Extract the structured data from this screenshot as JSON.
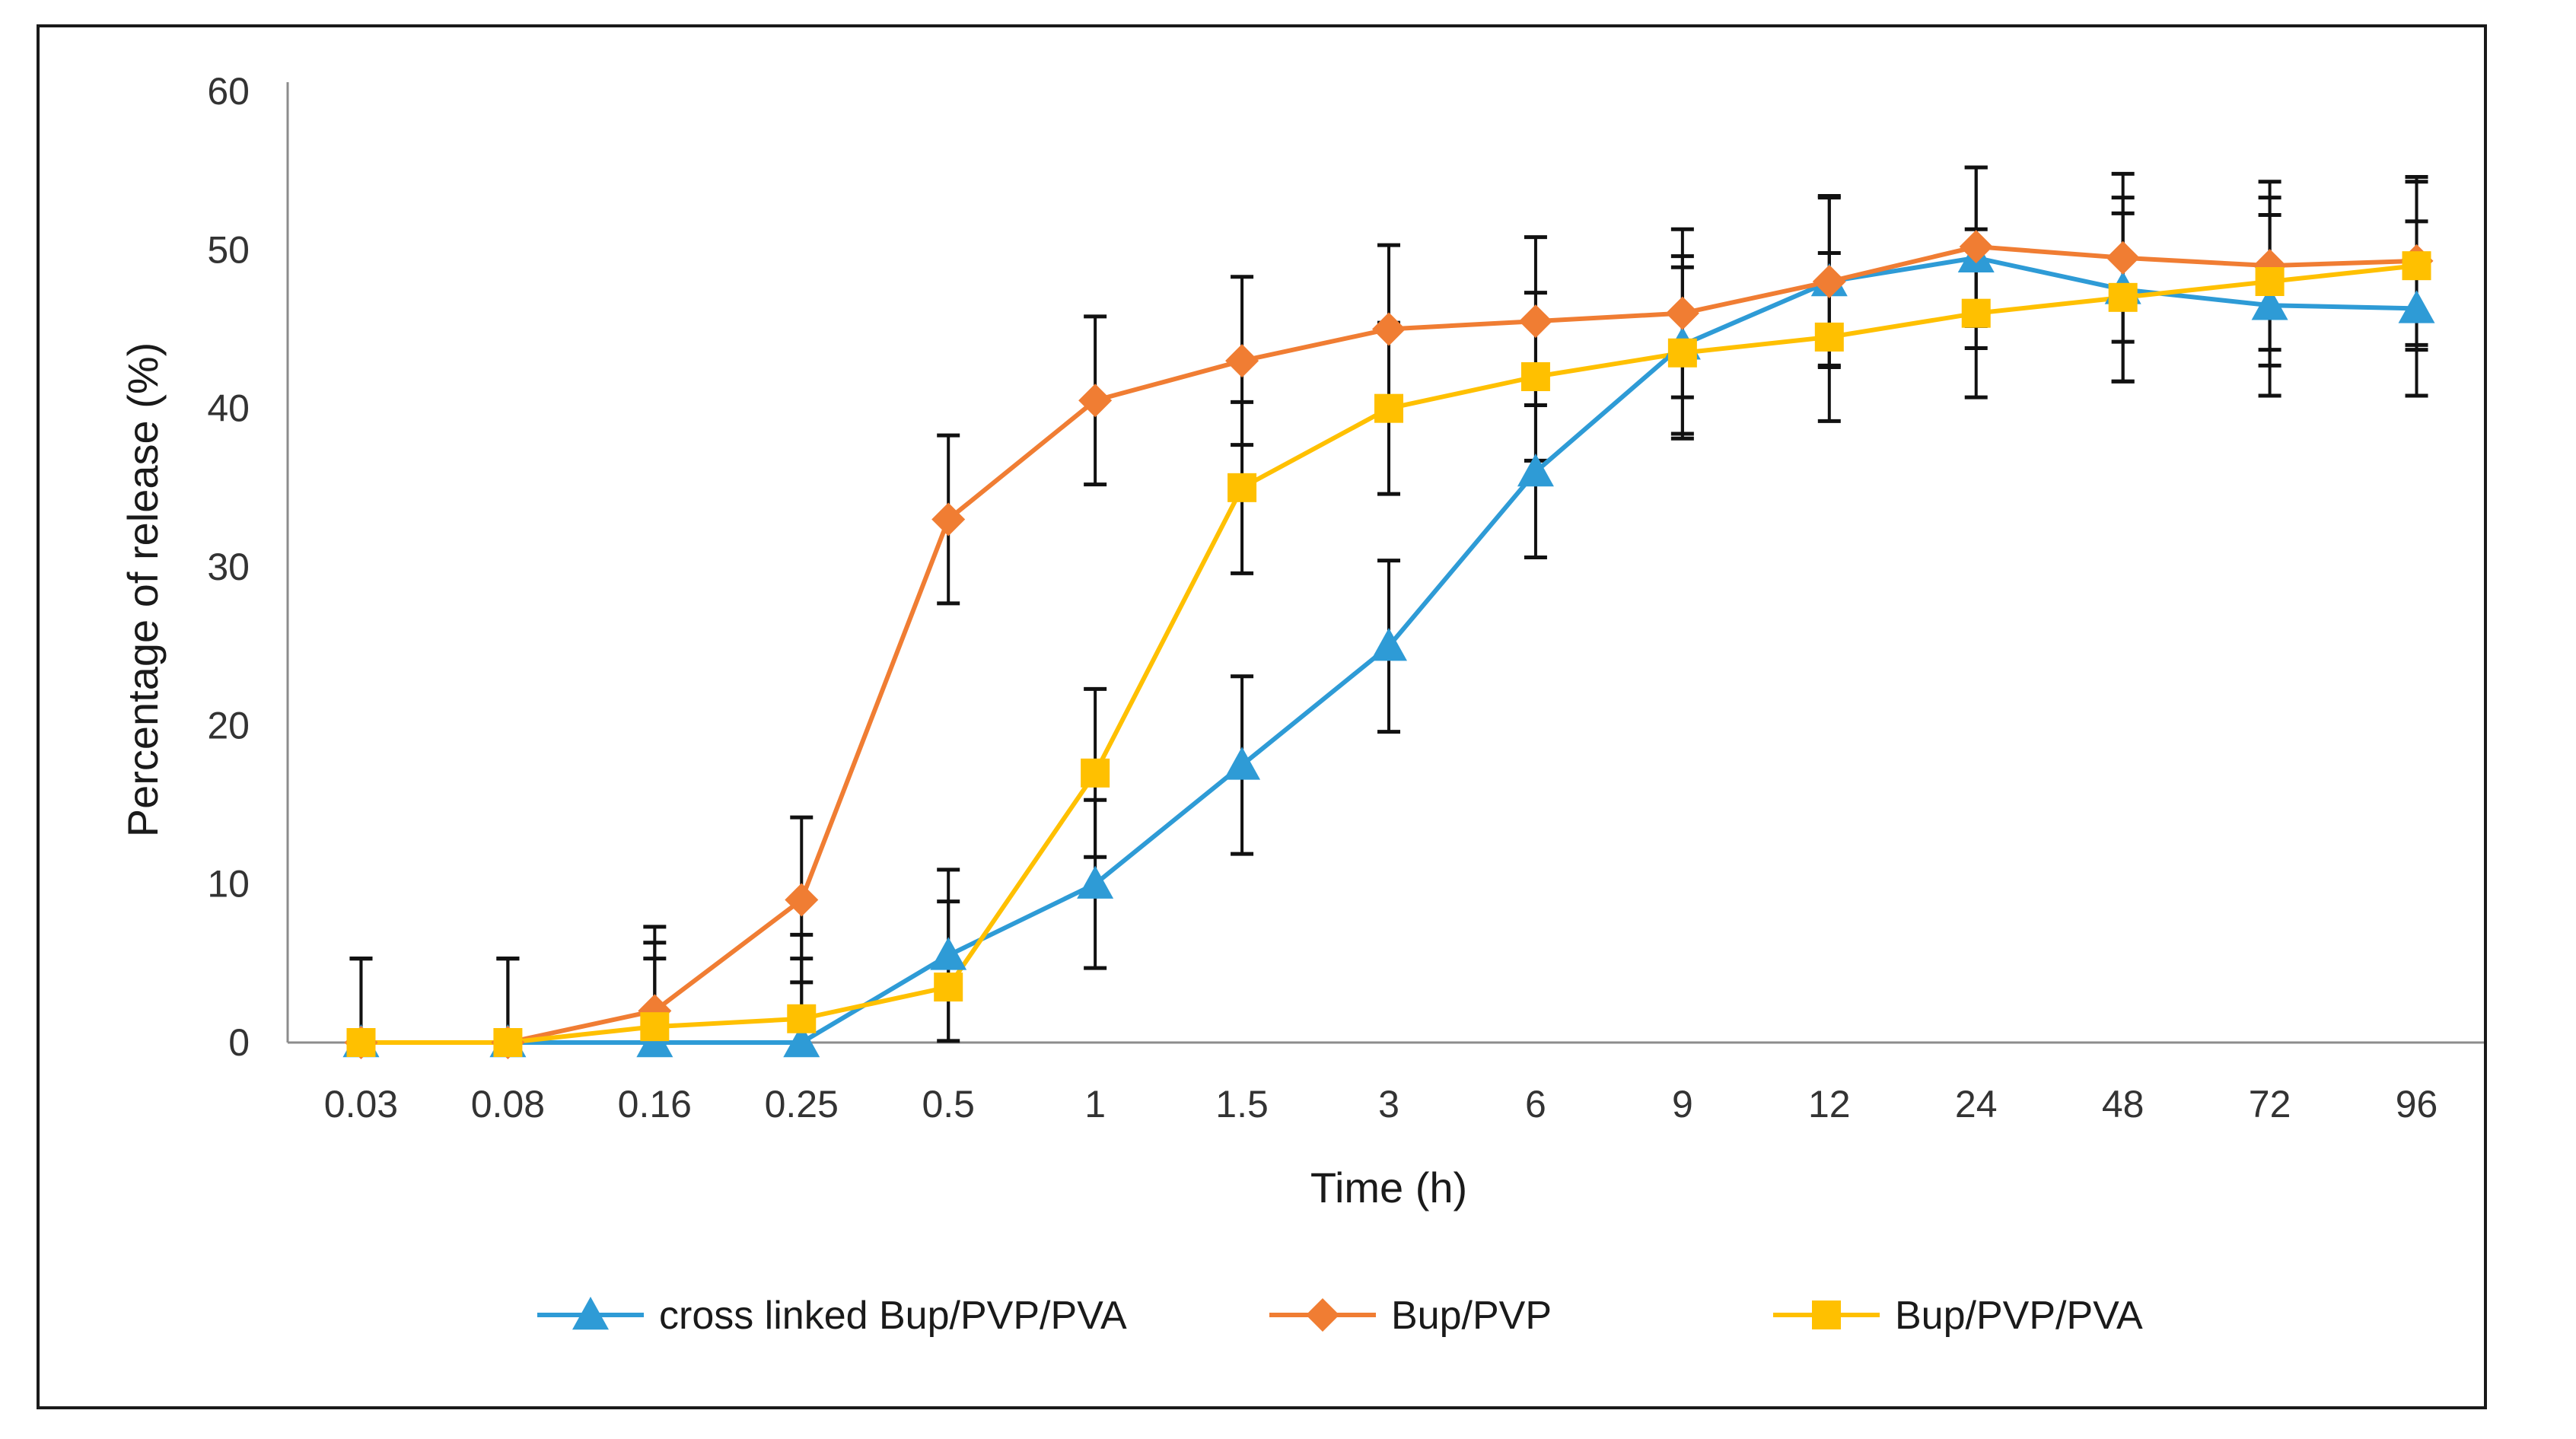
{
  "chart_data": {
    "type": "line",
    "title": "",
    "xlabel": "Time (h)",
    "ylabel": "Percentage of release (%)",
    "categories": [
      "0.03",
      "0.08",
      "0.16",
      "0.25",
      "0.5",
      "1",
      "1.5",
      "3",
      "6",
      "9",
      "12",
      "24",
      "48",
      "72",
      "96"
    ],
    "ylim": [
      0,
      60
    ],
    "yticks": [
      "0",
      "10",
      "20",
      "30",
      "40",
      "50",
      "60"
    ],
    "grid": false,
    "legend_position": "bottom",
    "series": [
      {
        "name": "cross linked Bup/PVP/PVA",
        "color": "#2E9BD6",
        "marker": "triangle",
        "values": [
          0,
          0,
          0,
          0,
          5.5,
          10,
          17.5,
          25,
          36,
          44,
          48,
          49.5,
          47.5,
          46.5,
          46.3
        ],
        "errors": [
          5.3,
          5.3,
          5.3,
          5.3,
          5.4,
          5.3,
          5.6,
          5.4,
          5.4,
          5.6,
          5.4,
          5.7,
          5.8,
          5.7,
          5.5
        ]
      },
      {
        "name": "Bup/PVP",
        "color": "#F07D33",
        "marker": "diamond",
        "values": [
          0,
          0,
          2,
          9,
          33,
          40.5,
          43,
          45,
          45.5,
          46,
          48,
          50.2,
          49.5,
          49,
          49.3
        ],
        "errors": [
          5.3,
          5.3,
          5.3,
          5.2,
          5.3,
          5.3,
          5.3,
          5.3,
          5.3,
          5.3,
          5.3,
          5.0,
          5.3,
          5.3,
          5.3
        ]
      },
      {
        "name": "Bup/PVP/PVA",
        "color": "#FFC000",
        "marker": "square",
        "values": [
          0,
          0,
          1,
          1.5,
          3.5,
          17,
          35,
          40,
          42,
          43.5,
          44.5,
          46,
          47,
          48,
          49
        ],
        "errors": [
          5.3,
          5.3,
          5.3,
          5.3,
          5.4,
          5.3,
          5.4,
          5.4,
          5.3,
          5.4,
          5.3,
          5.3,
          5.3,
          5.3,
          5.3
        ]
      }
    ]
  }
}
